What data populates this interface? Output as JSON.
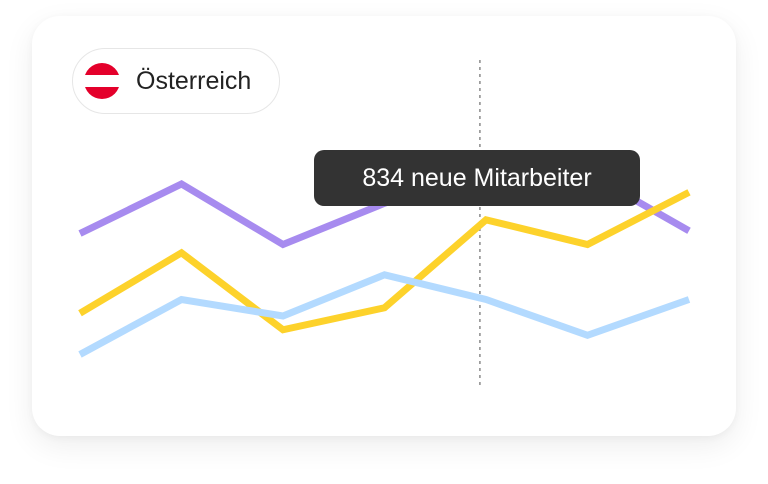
{
  "filter": {
    "country_label": "Österreich",
    "flag_colors": [
      "#e4002b",
      "#ffffff",
      "#e4002b"
    ]
  },
  "tooltip": {
    "text": "834 neue Mitarbeiter"
  },
  "chart_data": {
    "type": "line",
    "x": [
      1,
      2,
      3,
      4,
      5,
      6,
      7
    ],
    "ylim": [
      0,
      100
    ],
    "highlight_x": 4.94,
    "series": [
      {
        "color": "#a78bef",
        "values": [
          62,
          80,
          58,
          73,
          86,
          84,
          63
        ]
      },
      {
        "color": "#fdd22b",
        "values": [
          33,
          55,
          27,
          35,
          67,
          58,
          77
        ]
      },
      {
        "color": "#b3daff",
        "values": [
          18,
          38,
          32,
          47,
          38,
          25,
          38
        ]
      }
    ],
    "title": "",
    "xlabel": "",
    "ylabel": "",
    "grid": false,
    "legend": "none"
  }
}
